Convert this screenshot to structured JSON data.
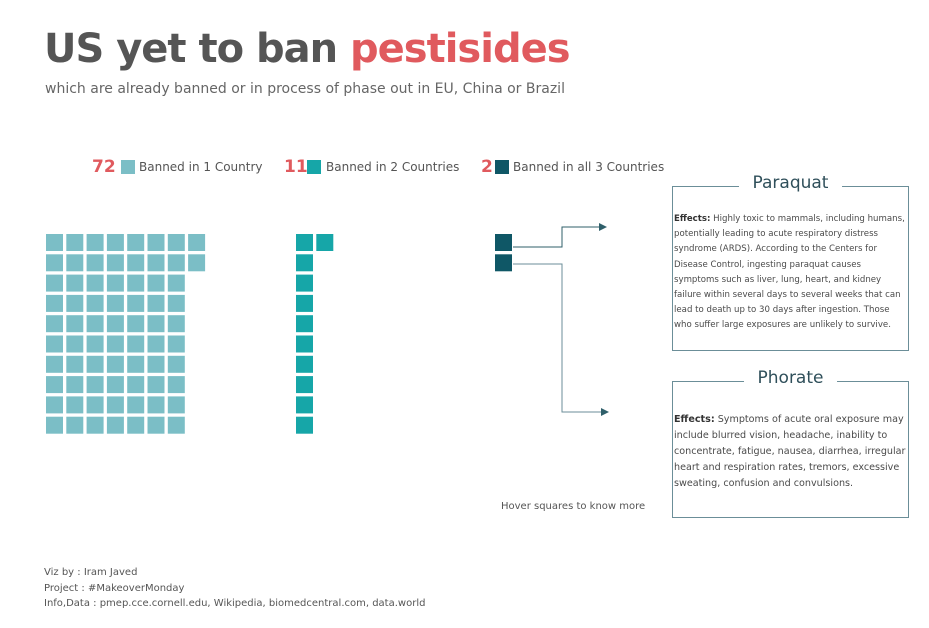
{
  "title": {
    "prefix": "US yet to ban ",
    "highlight": "pestisides"
  },
  "subtitle": "which are already banned or in process of phase out in EU, China or Brazil",
  "colors": {
    "accent": "#e05a5e",
    "one_country": "#7bbec6",
    "two_countries": "#16a6a8",
    "three_countries": "#0f5766",
    "connector": "#2f5f6a"
  },
  "chart_data": {
    "type": "waffle",
    "title": "US yet to ban pestisides",
    "categories": [
      "Banned in 1 Country",
      "Banned in 2 Countries",
      "Banned in all 3 Countries"
    ],
    "values": [
      72,
      11,
      2
    ]
  },
  "legend": [
    {
      "count": "72",
      "label": "Banned in 1 Country"
    },
    {
      "count": "11",
      "label": "Banned in 2 Countries"
    },
    {
      "count": "2",
      "label": "Banned in all 3 Countries"
    }
  ],
  "cards": {
    "paraquat": {
      "title": "Paraquat",
      "effects_label": "Effects:",
      "text": "Highly toxic to mammals, including humans, potentially leading to acute respiratory distress syndrome (ARDS). According to the Centers for Disease Control, ingesting paraquat causes symptoms such as liver, lung, heart, and kidney failure within several days to several weeks that can lead to death up to 30 days after ingestion. Those who suffer large exposures are unlikely to survive."
    },
    "phorate": {
      "title": "Phorate",
      "effects_label": "Effects:",
      "text": "Symptoms of acute oral exposure may include blurred vision, headache, inability to concentrate, fatigue, nausea, diarrhea, irregular heart and respiration rates, tremors, excessive sweating, confusion and convulsions."
    }
  },
  "hover_hint": "Hover squares to know more",
  "credits": {
    "viz_by": "Viz by : Iram Javed",
    "project": "Project : #MakeoverMonday",
    "info": "Info,Data : pmep.cce.cornell.edu, Wikipedia, biomedcentral.com, data.world"
  }
}
